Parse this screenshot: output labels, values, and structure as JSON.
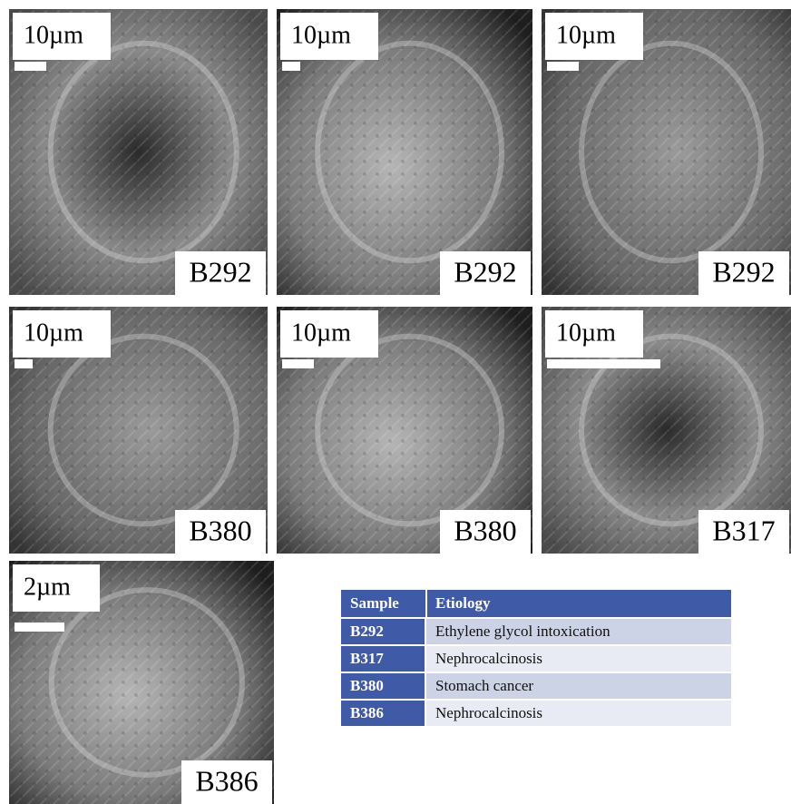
{
  "panels": [
    {
      "scale": "10µm",
      "sample": "B292"
    },
    {
      "scale": "10µm",
      "sample": "B292"
    },
    {
      "scale": "10µm",
      "sample": "B292"
    },
    {
      "scale": "10µm",
      "sample": "B380"
    },
    {
      "scale": "10µm",
      "sample": "B380"
    },
    {
      "scale": "10µm",
      "sample": "B317"
    },
    {
      "scale": "2µm",
      "sample": "B386"
    }
  ],
  "table": {
    "header": [
      "Sample",
      "Etiology"
    ],
    "rows": [
      [
        "B292",
        "Ethylene glycol intoxication"
      ],
      [
        "B317",
        "Nephrocalcinosis"
      ],
      [
        "B380",
        "Stomach cancer"
      ],
      [
        "B386",
        "Nephrocalcinosis"
      ]
    ]
  }
}
